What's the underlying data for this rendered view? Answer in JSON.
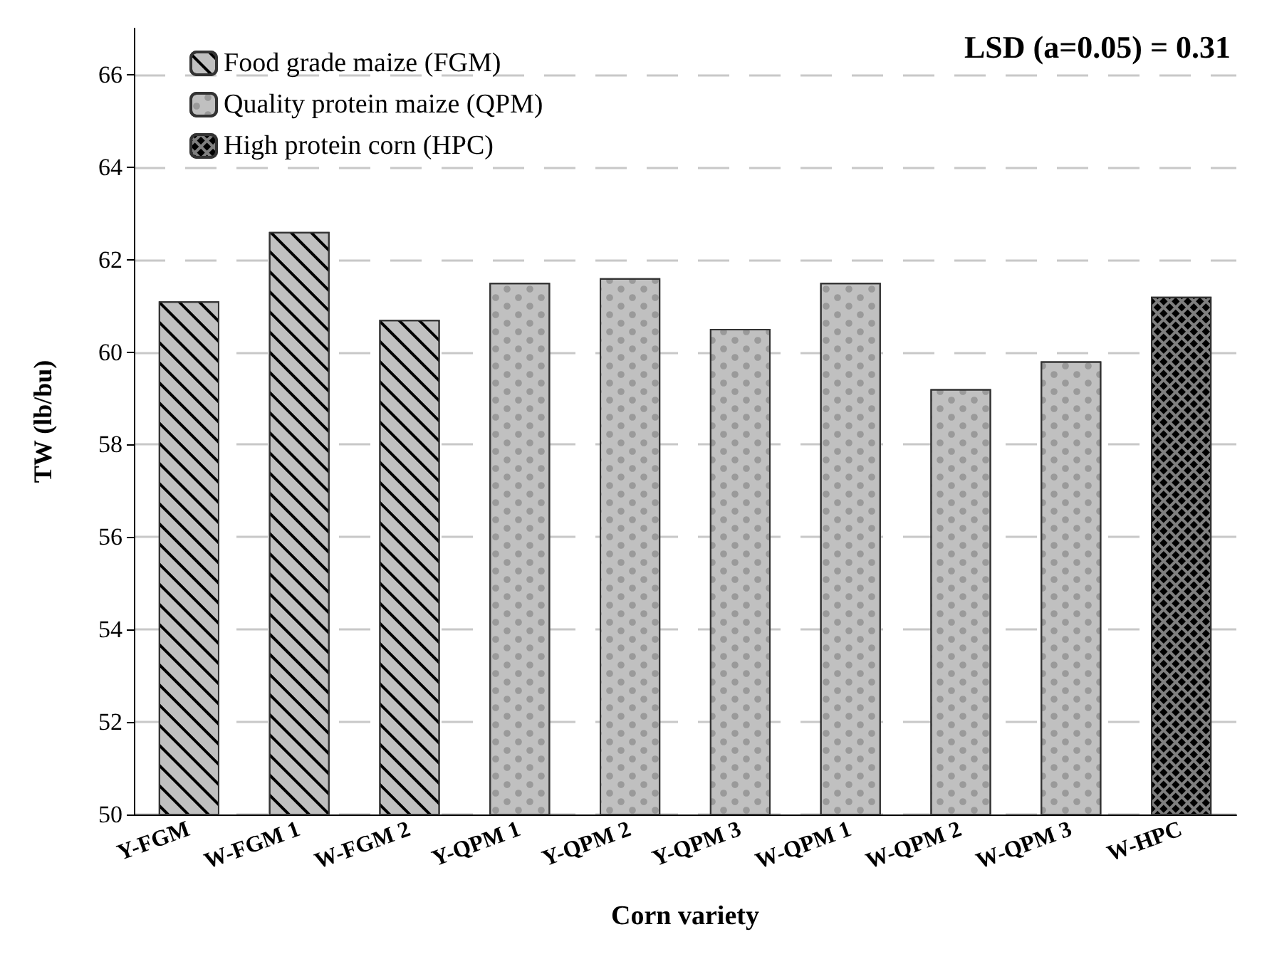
{
  "chart_data": {
    "type": "bar",
    "xlabel": "Corn variety",
    "ylabel": "TW (lb/bu)",
    "categories": [
      "Y-FGM",
      "W-FGM 1",
      "W-FGM 2",
      "Y-QPM 1",
      "Y-QPM 2",
      "Y-QPM 3",
      "W-QPM 1",
      "W-QPM 2",
      "W-QPM 3",
      "W-HPC"
    ],
    "series": [
      {
        "name": "Food grade maize (FGM)",
        "color": "#c0c0c0",
        "values": [
          61.1,
          62.6,
          60.7,
          null,
          null,
          null,
          null,
          null,
          null,
          null
        ]
      },
      {
        "name": "Quality protein maize (QPM)",
        "color": "#c0c0c0",
        "values": [
          null,
          null,
          null,
          61.5,
          61.6,
          60.5,
          61.5,
          59.2,
          59.8,
          null
        ]
      },
      {
        "name": "High protein corn (HPC)",
        "color": "#7f7f7f",
        "values": [
          null,
          null,
          null,
          null,
          null,
          null,
          null,
          null,
          null,
          61.2
        ]
      }
    ],
    "ylim": [
      50,
      67
    ],
    "yticks": [
      50,
      52,
      54,
      56,
      58,
      60,
      62,
      64,
      66
    ],
    "grid": "y",
    "legend": "top left",
    "annotations": [
      "LSD (a=0.05) = 0.31"
    ]
  }
}
